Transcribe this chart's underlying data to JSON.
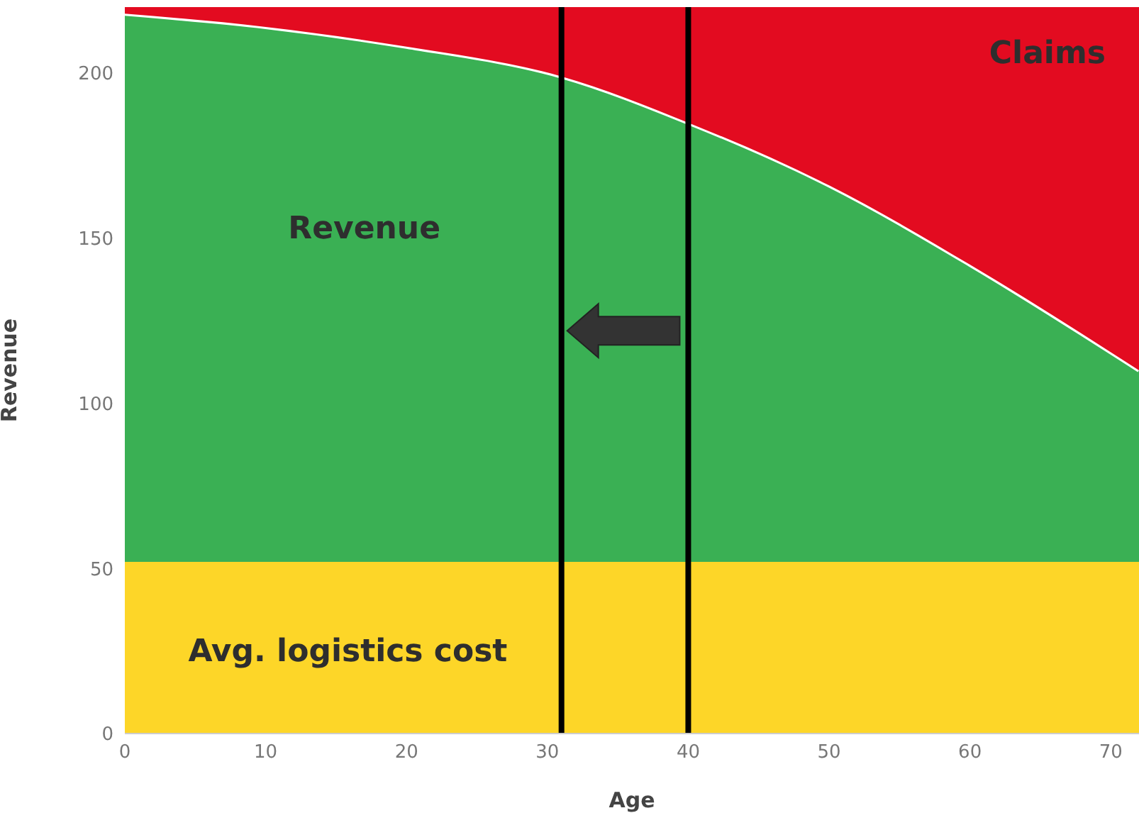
{
  "chart_data": {
    "type": "area",
    "stacked": true,
    "xlabel": "Age",
    "ylabel": "Revenue",
    "x": [
      0,
      10,
      20,
      31,
      40,
      50,
      60,
      72
    ],
    "series": [
      {
        "name": "Avg. logistics cost",
        "color": "#fdd628",
        "values": [
          52,
          52,
          52,
          52,
          52,
          52,
          52,
          52
        ]
      },
      {
        "name": "Revenue",
        "color": "#3ab054",
        "values": [
          166,
          162,
          156,
          147,
          133,
          114,
          90,
          58
        ]
      },
      {
        "name": "Claims",
        "color": "#e30b20",
        "values": [
          2,
          6,
          12,
          21,
          35,
          54,
          78,
          110
        ]
      }
    ],
    "xlim": [
      0,
      72
    ],
    "xticks": [
      0,
      10,
      20,
      30,
      40,
      50,
      60,
      70
    ],
    "ylim": [
      0,
      220
    ],
    "yticks": [
      0,
      50,
      100,
      150,
      200
    ],
    "grid": false,
    "legend": false,
    "ref_lines": [
      {
        "axis": "x",
        "value": 31,
        "color": "#000000"
      },
      {
        "axis": "x",
        "value": 40,
        "color": "#000000"
      }
    ]
  }
}
